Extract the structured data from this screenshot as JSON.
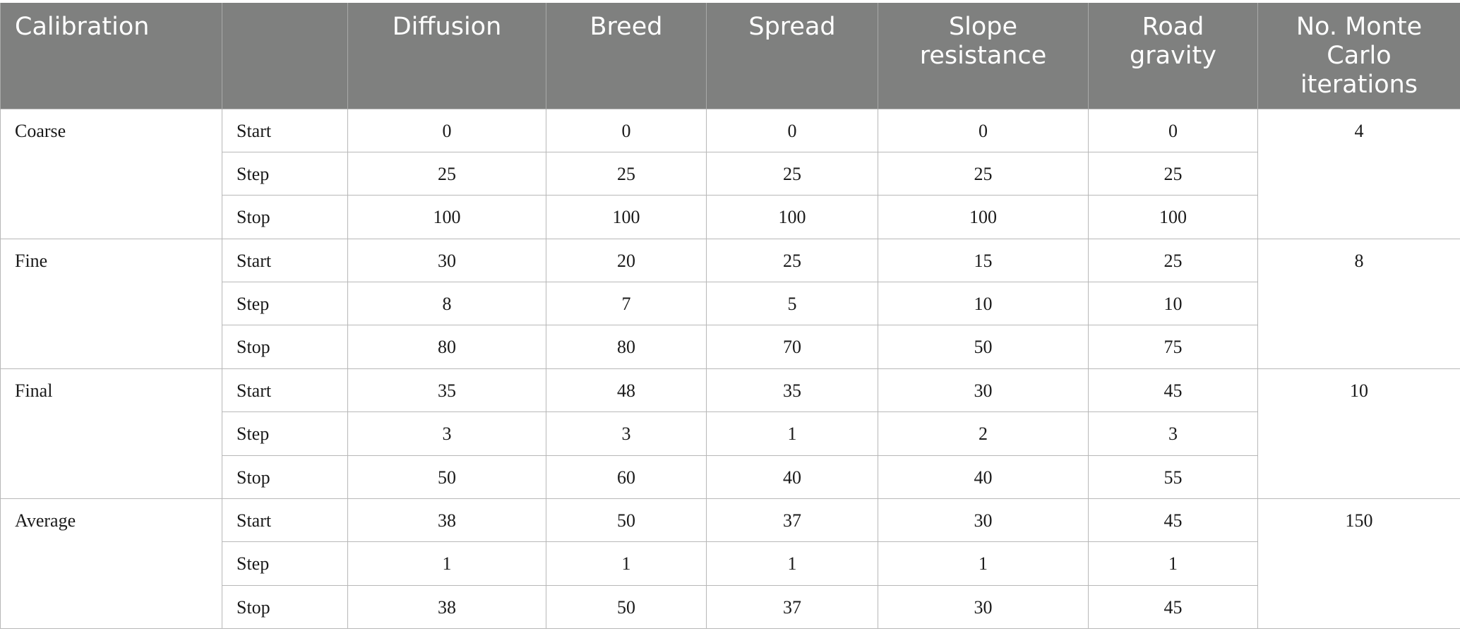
{
  "headers": [
    "Calibration",
    "",
    "Diffusion",
    "Breed",
    "Spread",
    "Slope resistance",
    "Road gravity",
    "No. Monte Carlo iterations"
  ],
  "groups": [
    {
      "name": "Coarse",
      "iterations": "4",
      "rows": [
        {
          "label": "Start",
          "values": [
            "0",
            "0",
            "0",
            "0",
            "0"
          ]
        },
        {
          "label": "Step",
          "values": [
            "25",
            "25",
            "25",
            "25",
            "25"
          ]
        },
        {
          "label": "Stop",
          "values": [
            "100",
            "100",
            "100",
            "100",
            "100"
          ]
        }
      ]
    },
    {
      "name": "Fine",
      "iterations": "8",
      "rows": [
        {
          "label": "Start",
          "values": [
            "30",
            "20",
            "25",
            "15",
            "25"
          ]
        },
        {
          "label": "Step",
          "values": [
            "8",
            "7",
            "5",
            "10",
            "10"
          ]
        },
        {
          "label": "Stop",
          "values": [
            "80",
            "80",
            "70",
            "50",
            "75"
          ]
        }
      ]
    },
    {
      "name": "Final",
      "iterations": "10",
      "rows": [
        {
          "label": "Start",
          "values": [
            "35",
            "48",
            "35",
            "30",
            "45"
          ]
        },
        {
          "label": "Step",
          "values": [
            "3",
            "3",
            "1",
            "2",
            "3"
          ]
        },
        {
          "label": "Stop",
          "values": [
            "50",
            "60",
            "40",
            "40",
            "55"
          ]
        }
      ]
    },
    {
      "name": "Average",
      "iterations": "150",
      "rows": [
        {
          "label": "Start",
          "values": [
            "38",
            "50",
            "37",
            "30",
            "45"
          ]
        },
        {
          "label": "Step",
          "values": [
            "1",
            "1",
            "1",
            "1",
            "1"
          ]
        },
        {
          "label": "Stop",
          "values": [
            "38",
            "50",
            "37",
            "30",
            "45"
          ]
        }
      ]
    }
  ]
}
